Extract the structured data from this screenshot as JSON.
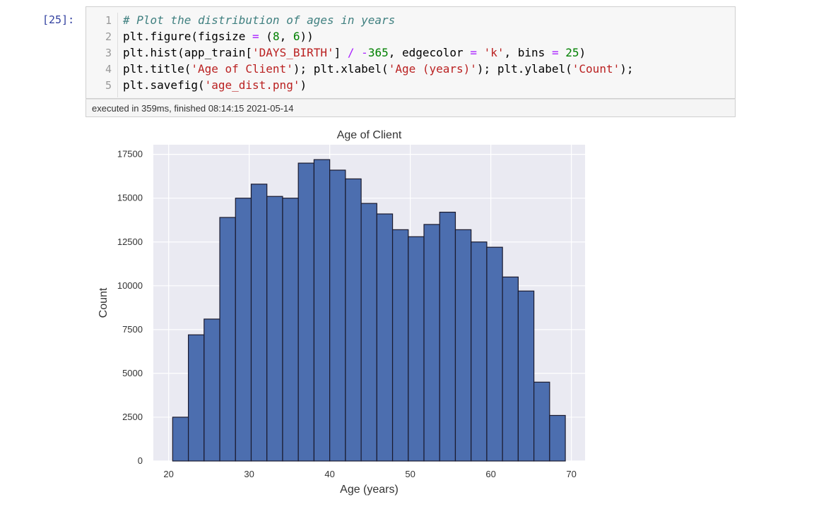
{
  "cell": {
    "prompt": "[25]:",
    "line_numbers": [
      "1",
      "2",
      "3",
      "4",
      "5"
    ],
    "code_lines": [
      [
        {
          "t": "# Plot the distribution of ages in years",
          "c": "comment"
        }
      ],
      [
        {
          "t": "plt.figure(figsize ",
          "c": ""
        },
        {
          "t": "=",
          "c": "op"
        },
        {
          "t": " (",
          "c": ""
        },
        {
          "t": "8",
          "c": "number"
        },
        {
          "t": ", ",
          "c": ""
        },
        {
          "t": "6",
          "c": "number"
        },
        {
          "t": "))",
          "c": ""
        }
      ],
      [
        {
          "t": "plt.hist(app_train[",
          "c": ""
        },
        {
          "t": "'DAYS_BIRTH'",
          "c": "string"
        },
        {
          "t": "] ",
          "c": ""
        },
        {
          "t": "/",
          "c": "op"
        },
        {
          "t": " ",
          "c": ""
        },
        {
          "t": "-",
          "c": "op"
        },
        {
          "t": "365",
          "c": "number"
        },
        {
          "t": ", edgecolor ",
          "c": ""
        },
        {
          "t": "=",
          "c": "op"
        },
        {
          "t": " ",
          "c": ""
        },
        {
          "t": "'k'",
          "c": "string"
        },
        {
          "t": ", bins ",
          "c": ""
        },
        {
          "t": "=",
          "c": "op"
        },
        {
          "t": " ",
          "c": ""
        },
        {
          "t": "25",
          "c": "number"
        },
        {
          "t": ")",
          "c": ""
        }
      ],
      [
        {
          "t": "plt.title(",
          "c": ""
        },
        {
          "t": "'Age of Client'",
          "c": "string"
        },
        {
          "t": "); plt.xlabel(",
          "c": ""
        },
        {
          "t": "'Age (years)'",
          "c": "string"
        },
        {
          "t": "); plt.ylabel(",
          "c": ""
        },
        {
          "t": "'Count'",
          "c": "string"
        },
        {
          "t": ");",
          "c": ""
        }
      ],
      [
        {
          "t": "plt.savefig(",
          "c": ""
        },
        {
          "t": "'age_dist.png'",
          "c": "string"
        },
        {
          "t": ")",
          "c": ""
        }
      ]
    ],
    "execution_info": "executed in 359ms, finished 08:14:15 2021-05-14"
  },
  "colors": {
    "bar_fill": "#4C6EAF",
    "bar_edge": "#1a1a2e",
    "plot_bg": "#EAEAF2",
    "grid": "#ffffff"
  },
  "chart_data": {
    "type": "bar",
    "title": "Age of Client",
    "xlabel": "Age (years)",
    "ylabel": "Count",
    "bin_edges": [
      20.5,
      22.45,
      24.4,
      26.35,
      28.3,
      30.25,
      32.2,
      34.15,
      36.1,
      38.05,
      40.0,
      41.95,
      43.9,
      45.85,
      47.8,
      49.75,
      51.7,
      53.65,
      55.6,
      57.55,
      59.5,
      61.45,
      63.4,
      65.35,
      67.3,
      69.25
    ],
    "values": [
      2500,
      7200,
      8100,
      13900,
      15000,
      15800,
      15100,
      15000,
      17000,
      17200,
      16600,
      16100,
      14700,
      14100,
      13200,
      12800,
      13500,
      14200,
      13200,
      12500,
      12200,
      10500,
      9700,
      4500,
      2600
    ],
    "xlim": [
      18.1,
      71.7
    ],
    "ylim": [
      0,
      18050
    ],
    "xticks": [
      20,
      30,
      40,
      50,
      60,
      70
    ],
    "yticks": [
      0,
      2500,
      5000,
      7500,
      10000,
      12500,
      15000,
      17500
    ],
    "grid": true
  }
}
